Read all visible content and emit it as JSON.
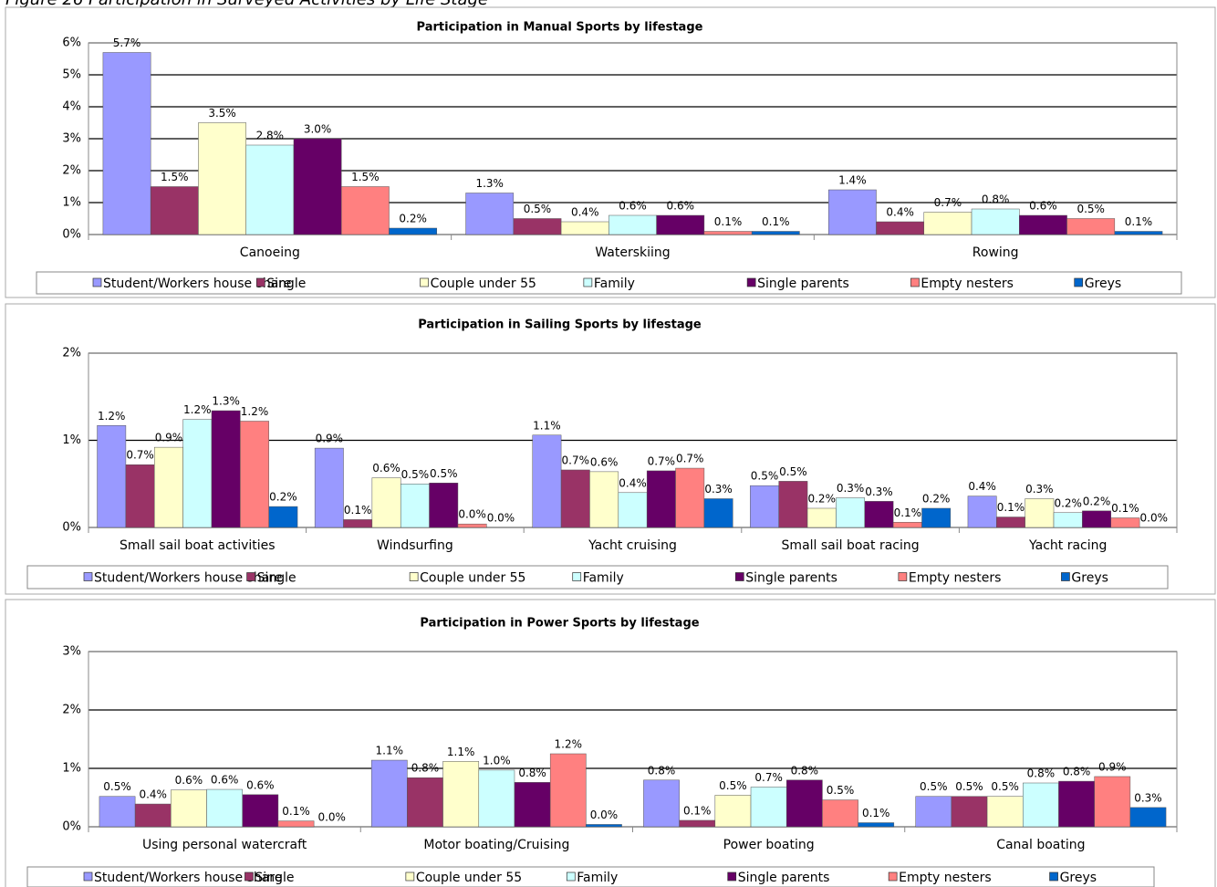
{
  "caption": "Figure 26 Participation in Surveyed Activities by Life Stage",
  "chart_data": [
    {
      "type": "bar",
      "title": "Participation in Manual Sports by lifestage",
      "categories": [
        "Canoeing",
        "Waterskiing",
        "Rowing"
      ],
      "ylim": [
        0,
        6
      ],
      "yticks": [
        {
          "value": 0,
          "label": "0%"
        },
        {
          "value": 1,
          "label": "1%"
        },
        {
          "value": 2,
          "label": "2%"
        },
        {
          "value": 3,
          "label": "3%"
        },
        {
          "value": 4,
          "label": "4%"
        },
        {
          "value": 5,
          "label": "5%"
        },
        {
          "value": 6,
          "label": "6%"
        }
      ],
      "grid": true,
      "legend": "bottom",
      "series": [
        {
          "name": "Student/Workers house share",
          "color": "#9999ff",
          "values": [
            5.7,
            1.3,
            1.4
          ],
          "value_labels": [
            "5.7%",
            "1.3%",
            "1.4%"
          ]
        },
        {
          "name": "Single",
          "color": "#993366",
          "values": [
            1.5,
            0.5,
            0.4
          ],
          "value_labels": [
            "1.5%",
            "0.5%",
            "0.4%"
          ]
        },
        {
          "name": "Couple under 55",
          "color": "#ffffcc",
          "values": [
            3.5,
            0.4,
            0.7
          ],
          "value_labels": [
            "3.5%",
            "0.4%",
            "0.7%"
          ]
        },
        {
          "name": "Family",
          "color": "#ccffff",
          "values": [
            2.8,
            0.6,
            0.8
          ],
          "value_labels": [
            "2.8%",
            "0.6%",
            "0.8%"
          ]
        },
        {
          "name": "Single parents",
          "color": "#660066",
          "values": [
            3.0,
            0.6,
            0.6
          ],
          "value_labels": [
            "3.0%",
            "0.6%",
            "0.6%"
          ]
        },
        {
          "name": "Empty nesters",
          "color": "#ff8080",
          "values": [
            1.5,
            0.1,
            0.5
          ],
          "value_labels": [
            "1.5%",
            "0.1%",
            "0.5%"
          ]
        },
        {
          "name": "Greys",
          "color": "#0066cc",
          "values": [
            0.2,
            0.1,
            0.1
          ],
          "value_labels": [
            "0.2%",
            "0.1%",
            "0.1%"
          ]
        }
      ]
    },
    {
      "type": "bar",
      "title": "Participation in Sailing Sports by lifestage",
      "categories": [
        "Small sail boat activities",
        "Windsurfing",
        "Yacht cruising",
        "Small sail boat racing",
        "Yacht racing"
      ],
      "ylim": [
        0,
        2
      ],
      "yticks": [
        {
          "value": 0,
          "label": "0%"
        },
        {
          "value": 1,
          "label": "1%"
        },
        {
          "value": 2,
          "label": "2%"
        }
      ],
      "grid": true,
      "legend": "bottom",
      "series": [
        {
          "name": "Student/Workers house share",
          "color": "#9999ff",
          "values": [
            1.17,
            0.91,
            1.06,
            0.48,
            0.36
          ],
          "value_labels": [
            "1.2%",
            "0.9%",
            "1.1%",
            "0.5%",
            "0.4%"
          ]
        },
        {
          "name": "Single",
          "color": "#993366",
          "values": [
            0.72,
            0.09,
            0.66,
            0.53,
            0.12
          ],
          "value_labels": [
            "0.7%",
            "0.1%",
            "0.7%",
            "0.5%",
            "0.1%"
          ]
        },
        {
          "name": "Couple under 55",
          "color": "#ffffcc",
          "values": [
            0.92,
            0.57,
            0.64,
            0.22,
            0.33
          ],
          "value_labels": [
            "0.9%",
            "0.6%",
            "0.6%",
            "0.2%",
            "0.3%"
          ]
        },
        {
          "name": "Family",
          "color": "#ccffff",
          "values": [
            1.24,
            0.5,
            0.4,
            0.34,
            0.17
          ],
          "value_labels": [
            "1.2%",
            "0.5%",
            "0.4%",
            "0.3%",
            "0.2%"
          ]
        },
        {
          "name": "Single parents",
          "color": "#660066",
          "values": [
            1.34,
            0.51,
            0.65,
            0.3,
            0.19
          ],
          "value_labels": [
            "1.3%",
            "0.5%",
            "0.7%",
            "0.3%",
            "0.2%"
          ]
        },
        {
          "name": "Empty nesters",
          "color": "#ff8080",
          "values": [
            1.22,
            0.04,
            0.68,
            0.06,
            0.11
          ],
          "value_labels": [
            "1.2%",
            "0.0%",
            "0.7%",
            "0.1%",
            "0.1%"
          ]
        },
        {
          "name": "Greys",
          "color": "#0066cc",
          "values": [
            0.24,
            0.0,
            0.33,
            0.22,
            0.0
          ],
          "value_labels": [
            "0.2%",
            "0.0%",
            "0.3%",
            "0.2%",
            "0.0%"
          ]
        }
      ]
    },
    {
      "type": "bar",
      "title": "Participation in Power Sports by lifestage",
      "categories": [
        "Using personal watercraft",
        "Motor boating/Cruising",
        "Power boating",
        "Canal boating"
      ],
      "ylim": [
        0,
        3
      ],
      "yticks": [
        {
          "value": 0,
          "label": "0%"
        },
        {
          "value": 1,
          "label": "1%"
        },
        {
          "value": 2,
          "label": "2%"
        },
        {
          "value": 3,
          "label": "3%"
        }
      ],
      "grid": true,
      "legend": "bottom",
      "series": [
        {
          "name": "Student/Workers house share",
          "color": "#9999ff",
          "values": [
            0.52,
            1.14,
            0.8,
            0.52
          ],
          "value_labels": [
            "0.5%",
            "1.1%",
            "0.8%",
            "0.5%"
          ]
        },
        {
          "name": "Single",
          "color": "#993366",
          "values": [
            0.39,
            0.84,
            0.11,
            0.52
          ],
          "value_labels": [
            "0.4%",
            "0.8%",
            "0.1%",
            "0.5%"
          ]
        },
        {
          "name": "Couple under 55",
          "color": "#ffffcc",
          "values": [
            0.63,
            1.12,
            0.54,
            0.52
          ],
          "value_labels": [
            "0.6%",
            "1.1%",
            "0.5%",
            "0.5%"
          ]
        },
        {
          "name": "Family",
          "color": "#ccffff",
          "values": [
            0.64,
            0.97,
            0.68,
            0.75
          ],
          "value_labels": [
            "0.6%",
            "1.0%",
            "0.7%",
            "0.8%"
          ]
        },
        {
          "name": "Single parents",
          "color": "#660066",
          "values": [
            0.55,
            0.76,
            0.8,
            0.78
          ],
          "value_labels": [
            "0.6%",
            "0.8%",
            "0.8%",
            "0.8%"
          ]
        },
        {
          "name": "Empty nesters",
          "color": "#ff8080",
          "values": [
            0.1,
            1.25,
            0.46,
            0.86
          ],
          "value_labels": [
            "0.1%",
            "1.2%",
            "0.5%",
            "0.9%"
          ]
        },
        {
          "name": "Greys",
          "color": "#0066cc",
          "values": [
            0.0,
            0.04,
            0.07,
            0.33
          ],
          "value_labels": [
            "0.0%",
            "0.0%",
            "0.1%",
            "0.3%"
          ]
        }
      ]
    }
  ]
}
